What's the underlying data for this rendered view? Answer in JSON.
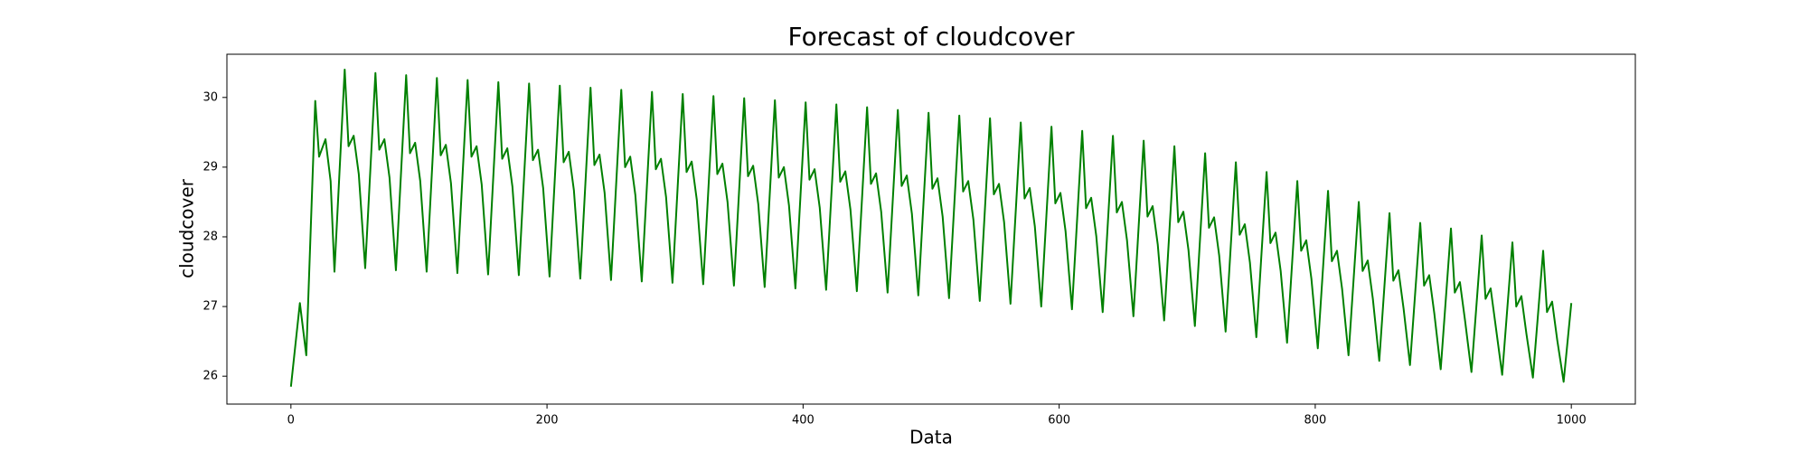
{
  "chart_data": {
    "type": "line",
    "title": "Forecast of cloudcover",
    "x_label": "Data",
    "y_label": "cloudcover",
    "color": "#008000",
    "xlim": [
      -50,
      1050
    ],
    "ylim": [
      25.6,
      30.62
    ],
    "xticks": [
      0,
      200,
      400,
      600,
      800,
      1000
    ],
    "yticks": [
      26,
      27,
      28,
      29,
      30
    ],
    "x": [
      0,
      7,
      12,
      19,
      22,
      27,
      31,
      34,
      38,
      42,
      45,
      49,
      53,
      58,
      62,
      66,
      69,
      73,
      77,
      82,
      86,
      90,
      93,
      97,
      101,
      106,
      110,
      114,
      117,
      121,
      125,
      130,
      134,
      138,
      141,
      145,
      149,
      154,
      158,
      162,
      165,
      169,
      173,
      178,
      182,
      186,
      189,
      193,
      197,
      202,
      206,
      210,
      213,
      217,
      221,
      226,
      230,
      234,
      237,
      241,
      245,
      250,
      254,
      258,
      261,
      265,
      269,
      274,
      278,
      282,
      285,
      289,
      293,
      298,
      302,
      306,
      309,
      313,
      317,
      322,
      326,
      330,
      333,
      337,
      341,
      346,
      350,
      354,
      357,
      361,
      365,
      370,
      374,
      378,
      381,
      385,
      389,
      394,
      398,
      402,
      405,
      409,
      413,
      418,
      422,
      426,
      429,
      433,
      437,
      442,
      446,
      450,
      453,
      457,
      461,
      466,
      470,
      474,
      477,
      481,
      485,
      490,
      494,
      498,
      501,
      505,
      509,
      514,
      518,
      522,
      525,
      529,
      533,
      538,
      542,
      546,
      549,
      553,
      557,
      562,
      566,
      570,
      573,
      577,
      581,
      586,
      590,
      594,
      597,
      601,
      605,
      610,
      614,
      618,
      621,
      625,
      629,
      634,
      638,
      642,
      645,
      649,
      653,
      658,
      662,
      666,
      669,
      673,
      677,
      682,
      686,
      690,
      693,
      697,
      701,
      706,
      710,
      714,
      717,
      721,
      725,
      730,
      734,
      738,
      741,
      745,
      749,
      754,
      758,
      762,
      765,
      769,
      773,
      778,
      782,
      786,
      789,
      793,
      797,
      802,
      806,
      810,
      813,
      817,
      821,
      826,
      830,
      834,
      837,
      841,
      845,
      850,
      854,
      858,
      861,
      865,
      869,
      874,
      878,
      882,
      885,
      889,
      893,
      898,
      902,
      906,
      909,
      913,
      917,
      922,
      926,
      930,
      933,
      937,
      941,
      946,
      950,
      954,
      957,
      961,
      965,
      970,
      974,
      978,
      981,
      985,
      989,
      994,
      1000
    ],
    "values": [
      25.85,
      27.05,
      26.3,
      29.95,
      29.15,
      29.4,
      28.8,
      27.5,
      28.95,
      30.4,
      29.3,
      29.45,
      28.9,
      27.55,
      28.95,
      30.35,
      29.25,
      29.4,
      28.85,
      27.52,
      28.92,
      30.32,
      29.2,
      29.35,
      28.8,
      27.5,
      28.89,
      30.28,
      29.17,
      29.32,
      28.77,
      27.48,
      28.87,
      30.25,
      29.15,
      29.3,
      28.75,
      27.46,
      28.84,
      30.22,
      29.12,
      29.27,
      28.72,
      27.45,
      28.83,
      30.2,
      29.1,
      29.25,
      28.7,
      27.43,
      28.8,
      30.17,
      29.07,
      29.22,
      28.67,
      27.4,
      28.77,
      30.14,
      29.03,
      29.18,
      28.63,
      27.38,
      28.75,
      30.11,
      29.0,
      29.15,
      28.6,
      27.36,
      28.72,
      30.08,
      28.97,
      29.12,
      28.57,
      27.34,
      28.7,
      30.05,
      28.93,
      29.08,
      28.53,
      27.32,
      28.67,
      30.02,
      28.9,
      29.05,
      28.5,
      27.3,
      28.65,
      29.99,
      28.87,
      29.02,
      28.47,
      27.28,
      28.62,
      29.96,
      28.85,
      29.0,
      28.45,
      27.26,
      28.6,
      29.93,
      28.82,
      28.97,
      28.42,
      27.24,
      28.57,
      29.9,
      28.79,
      28.94,
      28.39,
      27.22,
      28.54,
      29.86,
      28.76,
      28.91,
      28.36,
      27.2,
      28.51,
      29.82,
      28.73,
      28.88,
      28.33,
      27.16,
      28.47,
      29.78,
      28.69,
      28.84,
      28.29,
      27.12,
      28.43,
      29.74,
      28.65,
      28.8,
      28.25,
      27.08,
      28.39,
      29.7,
      28.61,
      28.76,
      28.21,
      27.04,
      28.34,
      29.64,
      28.55,
      28.7,
      28.15,
      27.0,
      28.29,
      29.58,
      28.48,
      28.63,
      28.08,
      26.96,
      28.24,
      29.52,
      28.41,
      28.56,
      28.01,
      26.92,
      28.19,
      29.45,
      28.35,
      28.5,
      27.95,
      26.86,
      28.12,
      29.38,
      28.29,
      28.44,
      27.89,
      26.8,
      28.05,
      29.3,
      28.21,
      28.36,
      27.81,
      26.72,
      27.96,
      29.2,
      28.13,
      28.28,
      27.73,
      26.64,
      27.86,
      29.07,
      28.03,
      28.18,
      27.63,
      26.56,
      27.75,
      28.93,
      27.91,
      28.06,
      27.51,
      26.48,
      27.64,
      28.8,
      27.8,
      27.95,
      27.4,
      26.4,
      27.53,
      28.66,
      27.65,
      27.8,
      27.25,
      26.3,
      27.4,
      28.5,
      27.51,
      27.66,
      27.11,
      26.22,
      27.28,
      28.34,
      27.37,
      27.52,
      26.97,
      26.16,
      27.18,
      28.2,
      27.3,
      27.45,
      26.9,
      26.1,
      27.11,
      28.12,
      27.2,
      27.35,
      26.8,
      26.06,
      27.04,
      28.02,
      27.11,
      27.26,
      26.71,
      26.02,
      26.97,
      27.92,
      27.0,
      27.15,
      26.6,
      25.98,
      26.89,
      27.8,
      26.92,
      27.07,
      26.52,
      25.92,
      27.05
    ]
  }
}
